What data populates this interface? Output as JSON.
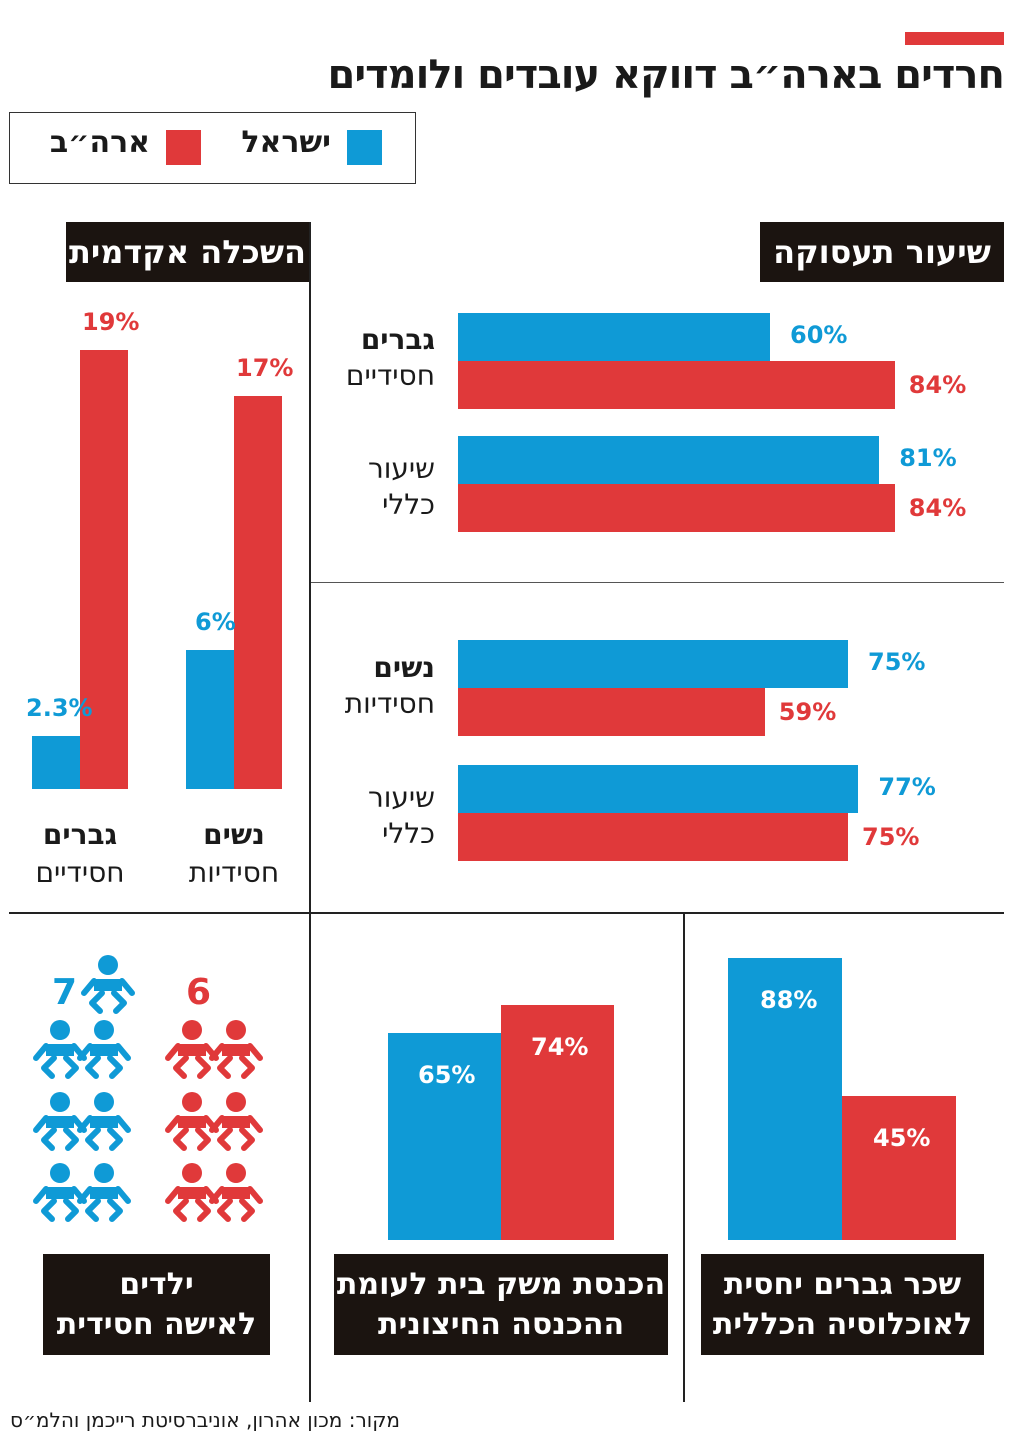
{
  "title": "חרדים בארה״ב דווקא עובדים ולומדים",
  "colors": {
    "israel": "#0f9ad6",
    "usa": "#e0393a",
    "dark": "#1b1410"
  },
  "legend": {
    "israel": "ישראל",
    "usa": "ארה״ב"
  },
  "employment": {
    "title": "שיעור תעסוקה",
    "men_bold": "גברים",
    "men_sub": "חסידיים",
    "women_bold": "נשים",
    "women_sub": "חסידיות",
    "general_line1": "שיעור",
    "general_line2": "כללי"
  },
  "education": {
    "title": "השכלה אקדמית",
    "women_bold": "נשים",
    "women_sub": "חסידיות",
    "men_bold": "גברים",
    "men_sub": "חסידיים"
  },
  "children": {
    "title_line1": "ילדים",
    "title_line2": "לאישה חסידית"
  },
  "income": {
    "title_line1": "הכנסת משק בית לעומת",
    "title_line2": "ההכנסה החיצונית"
  },
  "wage": {
    "title_line1": "שכר גברים יחסית",
    "title_line2": "לאוכלוסיה הכללית"
  },
  "source": "מקור: מכון אהרון, אוניברסיטת רייכמן והלמ״ס",
  "chart_data": [
    {
      "type": "bar",
      "title": "שיעור תעסוקה",
      "categories": [
        "גברים חסידיים",
        "שיעור כללי",
        "נשים חסידיות",
        "שיעור כללי"
      ],
      "series": [
        {
          "name": "ישראל",
          "values": [
            60,
            81,
            75,
            77
          ],
          "labels": [
            "60%",
            "81%",
            "75%",
            "77%"
          ]
        },
        {
          "name": "ארה״ב",
          "values": [
            84,
            84,
            59,
            75
          ],
          "labels": [
            "84%",
            "84%",
            "59%",
            "75%"
          ]
        }
      ]
    },
    {
      "type": "bar",
      "title": "השכלה אקדמית",
      "categories": [
        "נשים חסידיות",
        "גברים חסידיים"
      ],
      "series": [
        {
          "name": "ישראל",
          "values": [
            6,
            2.3
          ],
          "labels": [
            "6%",
            "2.3%"
          ]
        },
        {
          "name": "ארה״ב",
          "values": [
            17,
            19
          ],
          "labels": [
            "17%",
            "19%"
          ]
        }
      ]
    },
    {
      "type": "bar",
      "title": "ילדים לאישה חסידית",
      "series": [
        {
          "name": "ישראל",
          "values": [
            7
          ],
          "labels": [
            "7"
          ]
        },
        {
          "name": "ארה״ב",
          "values": [
            6
          ],
          "labels": [
            "6"
          ]
        }
      ]
    },
    {
      "type": "bar",
      "title": "הכנסת משק בית לעומת ההכנסה החיצונית",
      "series": [
        {
          "name": "ישראל",
          "values": [
            65
          ],
          "labels": [
            "65%"
          ]
        },
        {
          "name": "ארה״ב",
          "values": [
            74
          ],
          "labels": [
            "74%"
          ]
        }
      ]
    },
    {
      "type": "bar",
      "title": "שכר גברים יחסית לאוכלוסיה הכללית",
      "series": [
        {
          "name": "ישראל",
          "values": [
            88
          ],
          "labels": [
            "88%"
          ]
        },
        {
          "name": "ארה״ב",
          "values": [
            45
          ],
          "labels": [
            "45%"
          ]
        }
      ]
    }
  ]
}
